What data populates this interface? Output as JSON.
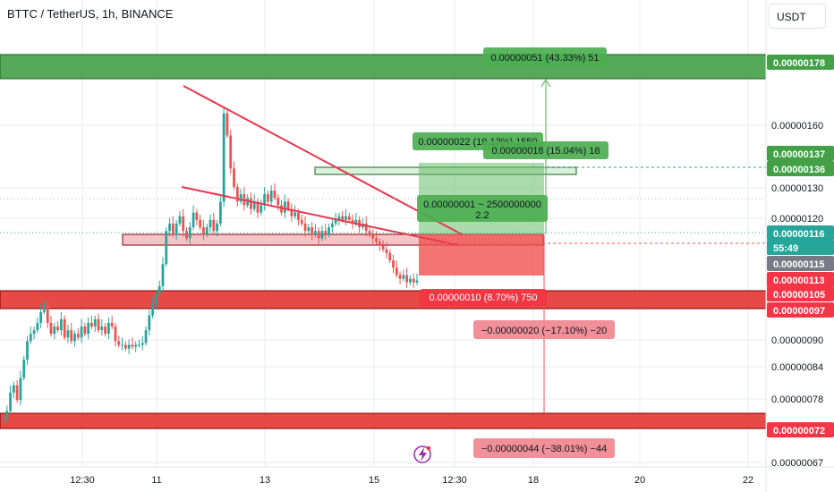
{
  "header": {
    "symbol_title": "BTTC / TetherUS, 1h, BINANCE",
    "currency": "USDT"
  },
  "colors": {
    "up": "#26a69a",
    "down": "#ef5350",
    "zone_green": "#43a047",
    "zone_red": "#e53935",
    "trendline": "#e53950",
    "target_label": "#4caf50",
    "stop_label": "#f23645",
    "grid": "#e9ebf0"
  },
  "chart_data": {
    "type": "candlestick",
    "price_axis": {
      "ticks": [
        "0.00000160",
        "0.00000130",
        "0.00000120",
        "0.00000090",
        "0.00000084",
        "0.00000078",
        "0.00000067"
      ]
    },
    "time_axis": {
      "ticks": [
        "12:30",
        "11",
        "13",
        "15",
        "12:30",
        "18",
        "20",
        "22"
      ]
    },
    "price_labels": [
      {
        "text": "0.00000178",
        "kind": "green"
      },
      {
        "text": "0.00000137",
        "kind": "green"
      },
      {
        "text": "0.00000136",
        "kind": "green"
      },
      {
        "text": "0.00000116",
        "kind": "teal"
      },
      {
        "text": "55:49",
        "kind": "teal"
      },
      {
        "text": "0.00000115",
        "kind": "gray"
      },
      {
        "text": "0.00000113",
        "kind": "red"
      },
      {
        "text": "0.00000105",
        "kind": "red"
      },
      {
        "text": "0.00000097",
        "kind": "red"
      },
      {
        "text": "0.00000072",
        "kind": "red"
      }
    ],
    "measure_labels": [
      {
        "text": "0.00000051 (43.33%) 51",
        "kind": "green"
      },
      {
        "text": "0.00000022 (19.13%) 1550",
        "kind": "green"
      },
      {
        "text": "0.00000018 (15.04%) 18",
        "kind": "green"
      },
      {
        "text": "0.00000001 ~ 2500000000",
        "kind": "green"
      },
      {
        "text": "2.2",
        "kind": "green"
      },
      {
        "text": "0.00000010 (8.70%) 750",
        "kind": "red"
      },
      {
        "text": "−0.00000020 (−17.10%) −20",
        "kind": "red_light"
      },
      {
        "text": "−0.00000044 (−38.01%) −44",
        "kind": "red_light"
      }
    ],
    "candles_close": [
      7.9e-07,
      8.1e-07,
      8.6e-07,
      8.8e-07,
      8.4e-07,
      9e-07,
      9.5e-07,
      1e-06,
      1.02e-06,
      1.03e-06,
      1.05e-06,
      1.08e-06,
      1.1e-06,
      1.05e-06,
      1.02e-06,
      1.04e-06,
      1.03e-06,
      1.06e-06,
      1.01e-06,
      1.03e-06,
      1e-06,
      1.02e-06,
      1.01e-06,
      1.04e-06,
      1.02e-06,
      1.05e-06,
      1.04e-06,
      1.06e-06,
      1.03e-06,
      1.04e-06,
      1.02e-06,
      1.05e-06,
      1.04e-06,
      1e-06,
      9.9e-07,
      9.9e-07,
      9.8e-07,
      9.9e-07,
      9.85e-07,
      9.9e-07,
      9.9e-07,
      9.95e-07,
      1.03e-06,
      1.07e-06,
      1.1e-06,
      1.13e-06,
      1.15e-06,
      1.21e-06,
      1.3e-06,
      1.32e-06,
      1.29e-06,
      1.32e-06,
      1.34e-06,
      1.3e-06,
      1.28e-06,
      1.31e-06,
      1.35e-06,
      1.33e-06,
      1.31e-06,
      1.29e-06,
      1.31e-06,
      1.33e-06,
      1.3e-06,
      1.32e-06,
      1.38e-06,
      1.62e-06,
      1.56e-06,
      1.47e-06,
      1.42e-06,
      1.38e-06,
      1.4e-06,
      1.37e-06,
      1.39e-06,
      1.36e-06,
      1.38e-06,
      1.35e-06,
      1.37e-06,
      1.4e-06,
      1.38e-06,
      1.41e-06,
      1.39e-06,
      1.37e-06,
      1.35e-06,
      1.38e-06,
      1.36e-06,
      1.34e-06,
      1.35e-06,
      1.33e-06,
      1.32e-06,
      1.3e-06,
      1.31e-06,
      1.29e-06,
      1.3e-06,
      1.28e-06,
      1.3e-06,
      1.29e-06,
      1.31e-06,
      1.32e-06,
      1.33e-06,
      1.34e-06,
      1.33e-06,
      1.34e-06,
      1.33e-06,
      1.32e-06,
      1.33e-06,
      1.31e-06,
      1.32e-06,
      1.3e-06,
      1.29e-06,
      1.28e-06,
      1.27e-06,
      1.26e-06,
      1.25e-06,
      1.24e-06,
      1.22e-06,
      1.2e-06,
      1.18e-06,
      1.17e-06,
      1.18e-06,
      1.16e-06,
      1.17e-06,
      1.16e-06,
      1.165e-06
    ]
  }
}
